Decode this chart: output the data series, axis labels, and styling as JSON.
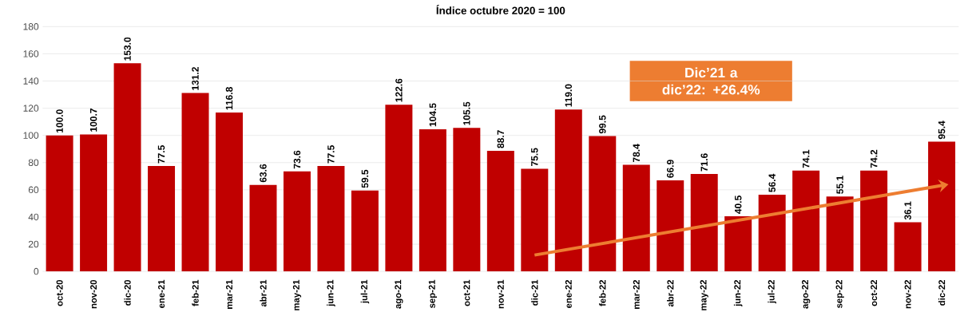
{
  "chart_data": {
    "type": "bar",
    "title": "Índice octubre 2020 = 100",
    "categories": [
      "oct-20",
      "nov-20",
      "dic-20",
      "ene-21",
      "feb-21",
      "mar-21",
      "abr-21",
      "may-21",
      "jun-21",
      "jul-21",
      "ago-21",
      "sep-21",
      "oct-21",
      "nov-21",
      "dic-21",
      "ene-22",
      "feb-22",
      "mar-22",
      "abr-22",
      "may-22",
      "jun-22",
      "jul-22",
      "ago-22",
      "sep-22",
      "oct-22",
      "nov-22",
      "dic-22"
    ],
    "values": [
      100.0,
      100.7,
      153.0,
      77.5,
      131.2,
      116.8,
      63.6,
      73.6,
      77.5,
      59.5,
      122.6,
      104.5,
      105.5,
      88.7,
      75.5,
      119.0,
      99.5,
      78.4,
      66.9,
      71.6,
      40.5,
      56.4,
      74.1,
      55.1,
      74.2,
      36.1,
      95.4
    ],
    "value_labels": [
      "100.0",
      "100.7",
      "153.0",
      "77.5",
      "131.2",
      "116.8",
      "63.6",
      "73.6",
      "77.5",
      "59.5",
      "122.6",
      "104.5",
      "105.5",
      "88.7",
      "75.5",
      "119.0",
      "99.5",
      "78.4",
      "66.9",
      "71.6",
      "40.5",
      "56.4",
      "74.1",
      "55.1",
      "74.2",
      "36.1",
      "95.4"
    ],
    "color": "#c00000",
    "grid": "y",
    "ylim": [
      0,
      180
    ],
    "yticks": [
      0,
      20,
      40,
      60,
      80,
      100,
      120,
      140,
      160,
      180
    ],
    "annotations": [
      "Dic’21 a dic’22: +26.4%"
    ]
  }
}
